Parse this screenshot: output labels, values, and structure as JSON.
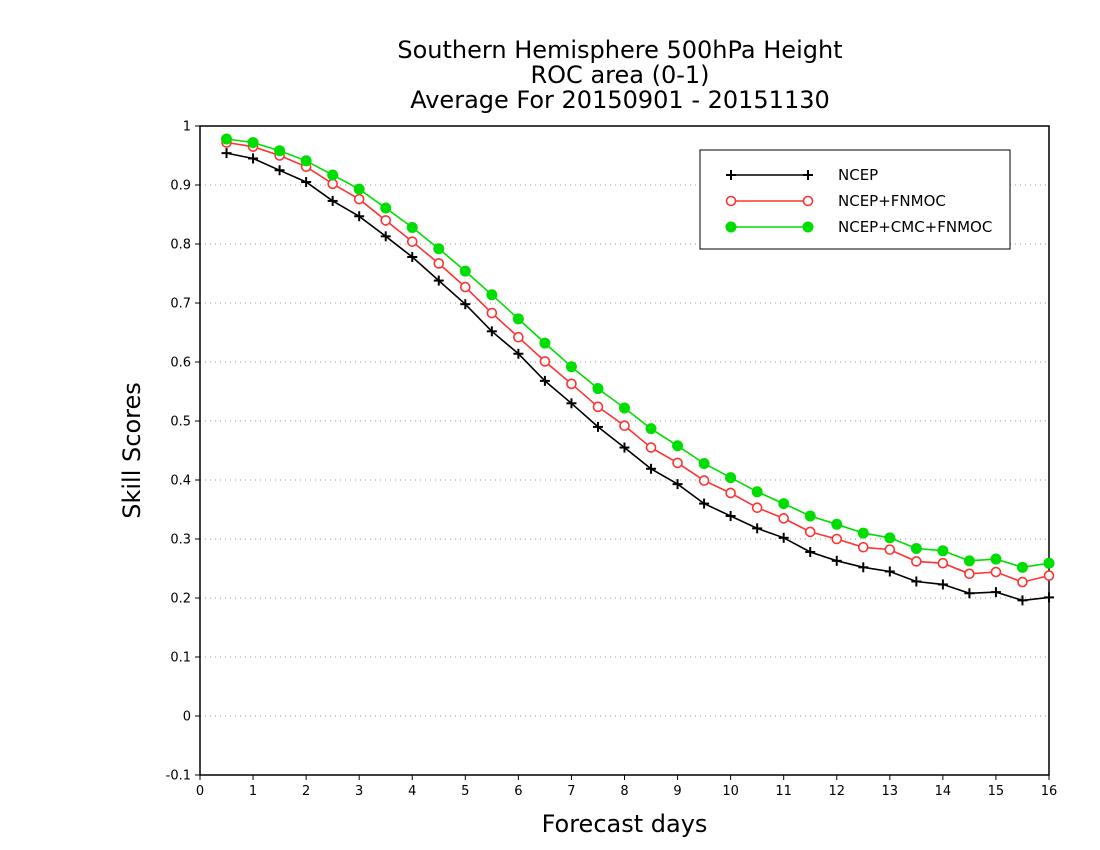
{
  "chart_data": {
    "type": "line",
    "title_lines": [
      "Southern Hemisphere 500hPa Height",
      "ROC area (0-1)",
      "Average For 20150901 - 20151130"
    ],
    "xlabel": "Forecast days",
    "ylabel": "Skill Scores",
    "xlim": [
      0,
      16
    ],
    "ylim": [
      -0.1,
      1
    ],
    "xticks": [
      0,
      1,
      2,
      3,
      4,
      5,
      6,
      7,
      8,
      9,
      10,
      11,
      12,
      13,
      14,
      15,
      16
    ],
    "yticks": [
      -0.1,
      0,
      0.1,
      0.2,
      0.3,
      0.4,
      0.5,
      0.6,
      0.7,
      0.8,
      0.9,
      1
    ],
    "ytick_labels": [
      "-0.1",
      "0",
      "0.1",
      "0.2",
      "0.3",
      "0.4",
      "0.5",
      "0.6",
      "0.7",
      "0.8",
      "0.9",
      "1"
    ],
    "xtick_labels": [
      "0",
      "1",
      "2",
      "3",
      "4",
      "5",
      "6",
      "7",
      "8",
      "9",
      "10",
      "11",
      "12",
      "13",
      "14",
      "15",
      "16"
    ],
    "grid": "horizontal dotted",
    "legend_position": "top-right",
    "x": [
      0.5,
      1,
      1.5,
      2,
      2.5,
      3,
      3.5,
      4,
      4.5,
      5,
      5.5,
      6,
      6.5,
      7,
      7.5,
      8,
      8.5,
      9,
      9.5,
      10,
      10.5,
      11,
      11.5,
      12,
      12.5,
      13,
      13.5,
      14,
      14.5,
      15,
      15.5,
      16
    ],
    "series": [
      {
        "name": "NCEP",
        "color": "#000000",
        "marker": "plus",
        "values": [
          0.954,
          0.945,
          0.925,
          0.905,
          0.873,
          0.847,
          0.813,
          0.778,
          0.738,
          0.698,
          0.652,
          0.614,
          0.568,
          0.53,
          0.49,
          0.455,
          0.419,
          0.393,
          0.36,
          0.339,
          0.318,
          0.302,
          0.278,
          0.263,
          0.252,
          0.245,
          0.228,
          0.223,
          0.208,
          0.21,
          0.196,
          0.201
        ]
      },
      {
        "name": "NCEP+FNMOC",
        "color": "#ff3333",
        "marker": "open-circle",
        "values": [
          0.972,
          0.965,
          0.95,
          0.931,
          0.902,
          0.876,
          0.84,
          0.804,
          0.767,
          0.727,
          0.683,
          0.642,
          0.601,
          0.563,
          0.524,
          0.492,
          0.455,
          0.429,
          0.399,
          0.378,
          0.353,
          0.335,
          0.312,
          0.3,
          0.286,
          0.282,
          0.262,
          0.259,
          0.241,
          0.244,
          0.227,
          0.238
        ]
      },
      {
        "name": "NCEP+CMC+FNMOC",
        "color": "#00dd00",
        "marker": "filled-circle",
        "values": [
          0.978,
          0.972,
          0.958,
          0.941,
          0.917,
          0.893,
          0.861,
          0.828,
          0.792,
          0.754,
          0.714,
          0.673,
          0.632,
          0.592,
          0.555,
          0.522,
          0.487,
          0.458,
          0.428,
          0.404,
          0.38,
          0.36,
          0.339,
          0.325,
          0.31,
          0.302,
          0.284,
          0.28,
          0.263,
          0.266,
          0.252,
          0.259
        ]
      }
    ]
  }
}
